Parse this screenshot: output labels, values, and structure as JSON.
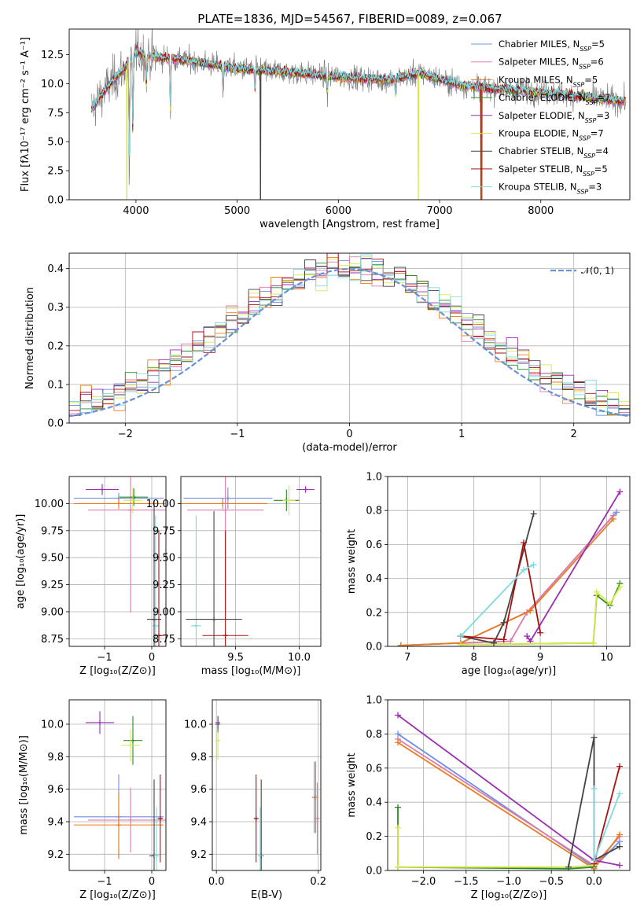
{
  "figure": {
    "title": "PLATE=1836, MJD=54567, FIBERID=0089, z=0.067",
    "colors": {
      "Chabrier MILES": "#6f8fe0",
      "Salpeter MILES": "#e07aa8",
      "Kroupa MILES": "#e87c1e",
      "Chabrier ELODIE": "#2a8a2a",
      "Salpeter ELODIE": "#9a2fb0",
      "Kroupa ELODIE": "#d8e84a",
      "Chabrier STELIB": "#444444",
      "Salpeter STELIB": "#aa1111",
      "Kroupa STELIB": "#7fd8e0"
    }
  },
  "chart_data": [
    {
      "id": "spectrum",
      "type": "line",
      "title": "PLATE=1836, MJD=54567, FIBERID=0089, z=0.067",
      "xlabel": "wavelength [Angstrom, rest frame]",
      "ylabel": "Flux [fλ10⁻¹⁷ erg cm⁻² s⁻¹ A⁻¹]",
      "xlim": [
        3340,
        8880
      ],
      "ylim": [
        0,
        14.7
      ],
      "xticks": [
        4000,
        5000,
        6000,
        7000,
        8000
      ],
      "yticks": [
        0.0,
        2.5,
        5.0,
        7.5,
        10.0,
        12.5
      ],
      "legend_position": "right",
      "legend": [
        "Chabrier MILES, N_SSP=5",
        "Salpeter MILES, N_SSP=6",
        "Kroupa MILES, N_SSP=5",
        "Chabrier ELODIE, N_SSP=7",
        "Salpeter ELODIE, N_SSP=3",
        "Kroupa ELODIE, N_SSP=7",
        "Chabrier STELIB, N_SSP=4",
        "Salpeter STELIB, N_SSP=5",
        "Kroupa STELIB, N_SSP=3"
      ],
      "continuum": {
        "x": [
          3560,
          3700,
          3900,
          4000,
          4100,
          4500,
          5000,
          5500,
          6000,
          6500,
          6800,
          7000,
          7200,
          7500,
          8000,
          8500,
          8800
        ],
        "y": [
          7.8,
          9.5,
          11.5,
          12.8,
          12.4,
          12.0,
          11.3,
          11.0,
          10.6,
          10.3,
          10.9,
          10.4,
          9.9,
          9.6,
          9.3,
          8.8,
          8.5
        ]
      },
      "absorption_lines": [
        {
          "x": 3934,
          "depth": 10.5
        },
        {
          "x": 3969,
          "depth": 7.5
        },
        {
          "x": 4102,
          "depth": 3.0
        },
        {
          "x": 4340,
          "depth": 5.0
        },
        {
          "x": 4861,
          "depth": 2.5
        },
        {
          "x": 5175,
          "depth": 2.0
        },
        {
          "x": 5890,
          "depth": 1.5
        },
        {
          "x": 6563,
          "depth": 1.5
        }
      ],
      "data_gaps": [
        {
          "x": 3910,
          "series": "Kroupa ELODIE"
        },
        {
          "x": 5230,
          "series": "Chabrier STELIB"
        },
        {
          "x": 6790,
          "series": "Kroupa ELODIE"
        },
        {
          "x": 7410,
          "series": "Salpeter STELIB"
        },
        {
          "x": 7420,
          "series": "Kroupa MILES"
        }
      ]
    },
    {
      "id": "residuals",
      "type": "line",
      "xlabel": "(data-model)/error",
      "ylabel": "Normed distribution",
      "xlim": [
        -2.5,
        2.5
      ],
      "ylim": [
        0,
        0.44
      ],
      "xticks": [
        -2,
        -1,
        0,
        1,
        2
      ],
      "yticks": [
        0.0,
        0.1,
        0.2,
        0.3,
        0.4
      ],
      "grid": true,
      "legend_position": "top-right",
      "legend": [
        "𝒩(0, 1)"
      ],
      "bin_width": 0.1
    },
    {
      "id": "Z-age",
      "type": "scatter",
      "xlabel": "Z [log₁₀(Z/Z⊙)]",
      "ylabel": "age  [log₁₀(age/yr)]",
      "xlim": [
        -1.75,
        0.3
      ],
      "ylim": [
        8.68,
        10.25
      ],
      "xticks": [
        -1,
        0
      ],
      "yticks": [
        8.75,
        9.0,
        9.25,
        9.5,
        9.75,
        10.0
      ],
      "grid": true,
      "points": [
        {
          "series": "Salpeter ELODIE",
          "x": -1.05,
          "y": 10.13,
          "xerr": 0.35,
          "yerr": 0.05
        },
        {
          "series": "Chabrier MILES",
          "x": -0.7,
          "y": 10.05,
          "xerr": 0.95,
          "yerr": 0.05
        },
        {
          "series": "Kroupa MILES",
          "x": -0.7,
          "y": 10.0,
          "xerr": 0.95,
          "yerr": 0.05
        },
        {
          "series": "Salpeter MILES",
          "x": -0.45,
          "y": 9.94,
          "xerr": 0.9,
          "yerr": 0.95
        },
        {
          "series": "Chabrier ELODIE",
          "x": -0.38,
          "y": 10.06,
          "xerr": 0.3,
          "yerr": 0.08
        },
        {
          "series": "Kroupa ELODIE",
          "x": -0.4,
          "y": 10.03,
          "xerr": 0.2,
          "yerr": 0.12
        },
        {
          "series": "Kroupa STELIB",
          "x": 0.08,
          "y": 8.87,
          "xerr": 0.06,
          "yerr": 1.02
        },
        {
          "series": "Chabrier STELIB",
          "x": 0.05,
          "y": 8.93,
          "xerr": 0.15,
          "yerr": 1.1
        },
        {
          "series": "Salpeter STELIB",
          "x": 0.15,
          "y": 8.78,
          "xerr": 0.1,
          "yerr": 0.97
        }
      ]
    },
    {
      "id": "mass-age",
      "type": "scatter",
      "xlabel": "mass [log₁₀(M/M⊙)]",
      "ylabel": "",
      "xlim": [
        9.07,
        10.17
      ],
      "ylim": [
        8.68,
        10.25
      ],
      "xticks": [
        9.5,
        10.0
      ],
      "yticks": [
        8.75,
        9.0,
        9.25,
        9.5,
        9.75,
        10.0
      ],
      "grid": true,
      "points": [
        {
          "series": "Salpeter ELODIE",
          "x": 10.05,
          "y": 10.13,
          "xerr": 0.07,
          "yerr": 0.03
        },
        {
          "series": "Chabrier MILES",
          "x": 9.44,
          "y": 10.05,
          "xerr": 0.35,
          "yerr": 0.1
        },
        {
          "series": "Kroupa MILES",
          "x": 9.4,
          "y": 10.0,
          "xerr": 0.35,
          "yerr": 0.05
        },
        {
          "series": "Salpeter MILES",
          "x": 9.42,
          "y": 9.94,
          "xerr": 0.3,
          "yerr": 0.95
        },
        {
          "series": "Chabrier ELODIE",
          "x": 9.9,
          "y": 10.03,
          "xerr": 0.1,
          "yerr": 0.1
        },
        {
          "series": "Kroupa ELODIE",
          "x": 9.92,
          "y": 10.03,
          "xerr": 0.05,
          "yerr": 0.14
        },
        {
          "series": "Kroupa STELIB",
          "x": 9.19,
          "y": 8.87,
          "xerr": 0.04,
          "yerr": 1.02
        },
        {
          "series": "Chabrier STELIB",
          "x": 9.33,
          "y": 8.93,
          "xerr": 0.22,
          "yerr": 1.0
        },
        {
          "series": "Salpeter STELIB",
          "x": 9.42,
          "y": 8.78,
          "xerr": 0.18,
          "yerr": 0.97
        }
      ]
    },
    {
      "id": "age-weight",
      "type": "line",
      "xlabel": "age  [log₁₀(age/yr)]",
      "ylabel": "mass weight",
      "xlim": [
        6.7,
        10.35
      ],
      "ylim": [
        0,
        1.0
      ],
      "xticks": [
        7,
        8,
        9,
        10
      ],
      "yticks": [
        0.0,
        0.2,
        0.4,
        0.6,
        0.8,
        1.0
      ],
      "grid": true,
      "series": [
        {
          "name": "Chabrier MILES",
          "x": [
            6.9,
            7.8,
            8.8,
            10.15
          ],
          "y": [
            0.005,
            0.02,
            0.2,
            0.79
          ]
        },
        {
          "name": "Salpeter MILES",
          "x": [
            6.9,
            7.8,
            8.55,
            8.8,
            10.1
          ],
          "y": [
            0.005,
            0.02,
            0.03,
            0.2,
            0.77
          ]
        },
        {
          "name": "Kroupa MILES",
          "x": [
            6.9,
            7.8,
            8.85,
            10.1
          ],
          "y": [
            0.005,
            0.02,
            0.21,
            0.75
          ]
        },
        {
          "name": "Chabrier ELODIE",
          "x": [
            7.8,
            9.8,
            9.85,
            10.05,
            10.2
          ],
          "y": [
            0.01,
            0.02,
            0.3,
            0.24,
            0.37
          ]
        },
        {
          "name": "Salpeter ELODIE",
          "x": [
            8.8,
            8.85,
            10.2
          ],
          "y": [
            0.06,
            0.03,
            0.91
          ]
        },
        {
          "name": "Kroupa ELODIE",
          "x": [
            7.8,
            9.8,
            9.85,
            10.05,
            10.2
          ],
          "y": [
            0.01,
            0.02,
            0.32,
            0.25,
            0.35
          ]
        },
        {
          "name": "Chabrier STELIB",
          "x": [
            7.8,
            8.3,
            8.45,
            8.9
          ],
          "y": [
            0.06,
            0.02,
            0.14,
            0.78
          ]
        },
        {
          "name": "Salpeter STELIB",
          "x": [
            7.8,
            8.45,
            8.75,
            9.0
          ],
          "y": [
            0.06,
            0.04,
            0.61,
            0.08
          ]
        },
        {
          "name": "Kroupa STELIB",
          "x": [
            7.8,
            8.75,
            8.9
          ],
          "y": [
            0.06,
            0.45,
            0.48
          ]
        }
      ]
    },
    {
      "id": "Z-mass",
      "type": "scatter",
      "xlabel": "Z [log₁₀(Z/Z⊙)]",
      "ylabel": "mass [log₁₀(M/M⊙)]",
      "xlim": [
        -1.75,
        0.3
      ],
      "ylim": [
        9.1,
        10.15
      ],
      "xticks": [
        -1,
        0
      ],
      "yticks": [
        9.2,
        9.4,
        9.6,
        9.8,
        10.0
      ],
      "grid": true,
      "points": [
        {
          "series": "Salpeter ELODIE",
          "x": -1.1,
          "y": 10.01,
          "xerr": 0.3,
          "yerr": 0.07
        },
        {
          "series": "Chabrier ELODIE",
          "x": -0.4,
          "y": 9.9,
          "xerr": 0.2,
          "yerr": 0.15
        },
        {
          "series": "Kroupa ELODIE",
          "x": -0.45,
          "y": 9.87,
          "xerr": 0.2,
          "yerr": 0.1
        },
        {
          "series": "Chabrier MILES",
          "x": -0.7,
          "y": 9.43,
          "xerr": 0.95,
          "yerr": 0.26
        },
        {
          "series": "Salpeter MILES",
          "x": -0.45,
          "y": 9.41,
          "xerr": 0.9,
          "yerr": 0.2
        },
        {
          "series": "Kroupa MILES",
          "x": -0.7,
          "y": 9.38,
          "xerr": 0.95,
          "yerr": 0.2
        },
        {
          "series": "Chabrier STELIB",
          "x": 0.05,
          "y": 9.19,
          "xerr": 0.1,
          "yerr": 0.47
        },
        {
          "series": "Kroupa STELIB",
          "x": 0.1,
          "y": 9.19,
          "xerr": 0.05,
          "yerr": 0.3
        },
        {
          "series": "Salpeter STELIB",
          "x": 0.18,
          "y": 9.42,
          "xerr": 0.05,
          "yerr": 0.27
        }
      ]
    },
    {
      "id": "ebv-mass",
      "type": "scatter",
      "xlabel": "E(B-V)",
      "ylabel": "",
      "xlim": [
        -0.008,
        0.205
      ],
      "ylim": [
        9.1,
        10.15
      ],
      "xticks": [
        0.0,
        0.2
      ],
      "yticks": [
        9.2,
        9.4,
        9.6,
        9.8,
        10.0
      ],
      "grid": true,
      "points": [
        {
          "series": "Kroupa ELODIE",
          "x": 0.003,
          "y": 9.9,
          "yerr": 0.12
        },
        {
          "series": "Chabrier ELODIE",
          "x": 0.003,
          "y": 10.0,
          "yerr": 0.05
        },
        {
          "series": "Salpeter ELODIE",
          "x": 0.003,
          "y": 10.01,
          "yerr": 0.04
        },
        {
          "series": "Salpeter STELIB",
          "x": 0.078,
          "y": 9.42,
          "yerr": 0.27
        },
        {
          "series": "Chabrier STELIB",
          "x": 0.088,
          "y": 9.19,
          "yerr": 0.47
        },
        {
          "series": "Kroupa STELIB",
          "x": 0.086,
          "y": 9.19,
          "yerr": 0.3
        },
        {
          "series": "Chabrier MILES",
          "x": 0.192,
          "y": 9.55,
          "yerr": 0.22
        },
        {
          "series": "Kroupa MILES",
          "x": 0.195,
          "y": 9.55,
          "yerr": 0.22
        },
        {
          "series": "Salpeter MILES",
          "x": 0.198,
          "y": 9.42,
          "yerr": 0.22
        }
      ]
    },
    {
      "id": "Z-weight",
      "type": "line",
      "xlabel": "Z [log₁₀(Z/Z⊙)]",
      "ylabel": "mass weight",
      "xlim": [
        -2.42,
        0.42
      ],
      "ylim": [
        0,
        1.0
      ],
      "xticks": [
        -2.0,
        -1.5,
        -1.0,
        -0.5,
        0.0
      ],
      "yticks": [
        0.0,
        0.2,
        0.4,
        0.6,
        0.8,
        1.0
      ],
      "grid": true,
      "series": [
        {
          "name": "Chabrier MILES",
          "x": [
            -2.3,
            0.0,
            0.3
          ],
          "y": [
            0.8,
            0.02,
            0.17
          ]
        },
        {
          "name": "Salpeter MILES",
          "x": [
            -2.3,
            0.0,
            0.3
          ],
          "y": [
            0.77,
            0.03,
            0.2
          ]
        },
        {
          "name": "Kroupa MILES",
          "x": [
            -2.3,
            0.0,
            0.3
          ],
          "y": [
            0.75,
            0.01,
            0.21
          ]
        },
        {
          "name": "Chabrier ELODIE",
          "x": [
            -2.3,
            -2.3,
            -0.3,
            0.0
          ],
          "y": [
            0.37,
            0.02,
            0.01,
            0.02
          ]
        },
        {
          "name": "Salpeter ELODIE",
          "x": [
            -2.3,
            0.0,
            0.3
          ],
          "y": [
            0.91,
            0.06,
            0.03
          ]
        },
        {
          "name": "Kroupa ELODIE",
          "x": [
            -2.3,
            -2.3,
            -0.3,
            0.0
          ],
          "y": [
            0.25,
            0.02,
            0.02,
            0.03
          ]
        },
        {
          "name": "Chabrier STELIB",
          "x": [
            -0.3,
            0.0,
            0.0,
            0.3
          ],
          "y": [
            0.02,
            0.78,
            0.06,
            0.14
          ]
        },
        {
          "name": "Salpeter STELIB",
          "x": [
            0.0,
            0.3
          ],
          "y": [
            0.04,
            0.61
          ]
        },
        {
          "name": "Kroupa STELIB",
          "x": [
            0.0,
            0.0,
            0.3
          ],
          "y": [
            0.48,
            0.06,
            0.45
          ]
        }
      ]
    }
  ]
}
